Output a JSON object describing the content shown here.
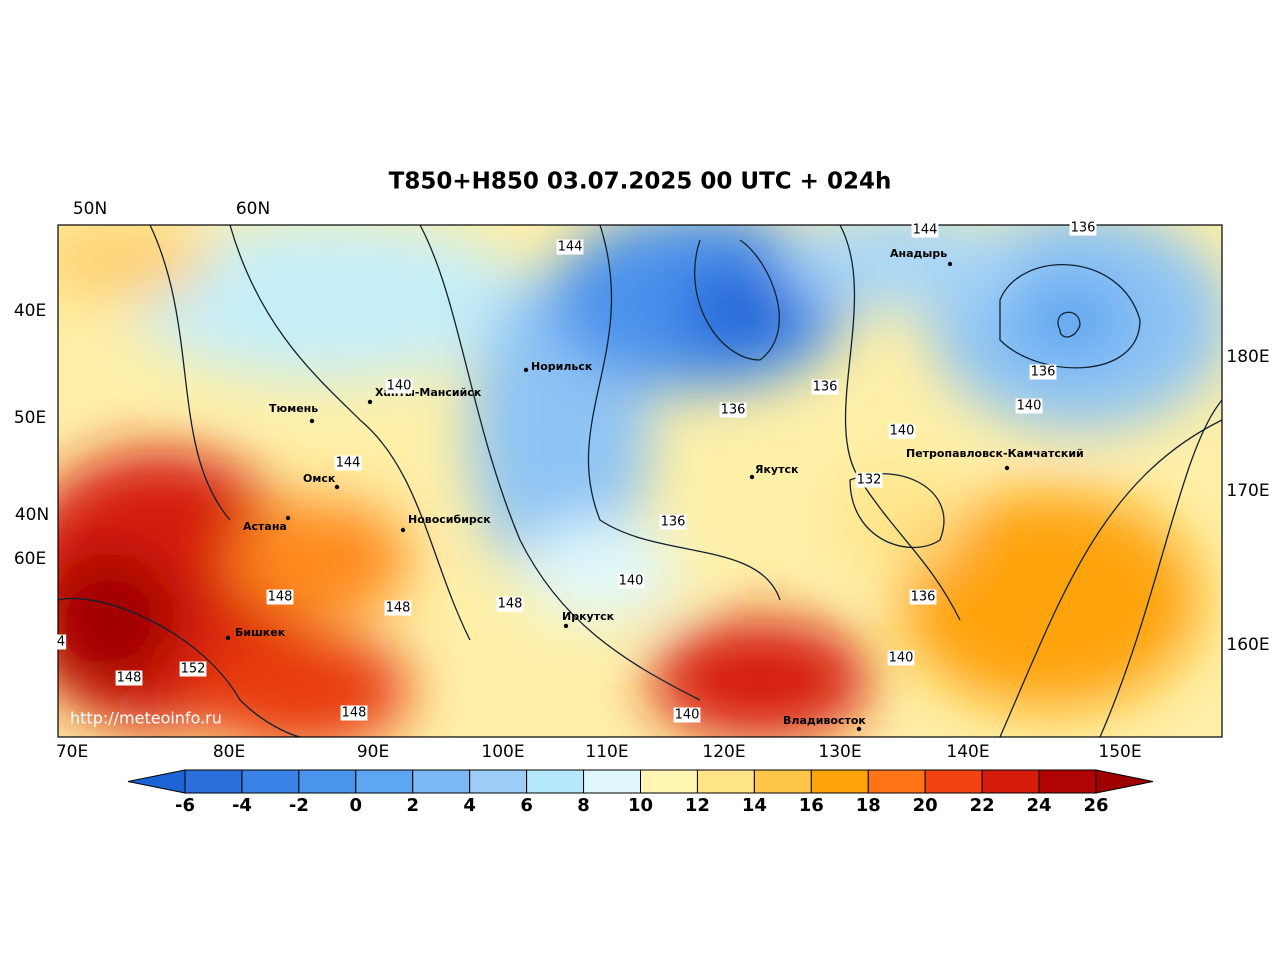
{
  "title": "T850+H850 03.07.2025 00 UTC + 024h",
  "axis_labels": {
    "top": [
      "50N",
      "60N"
    ],
    "left": [
      "40E",
      "50E",
      "40N",
      "60E"
    ],
    "right": [
      "180E",
      "170E",
      "160E"
    ],
    "bottom": [
      "70E",
      "80E",
      "90E",
      "100E",
      "110E",
      "120E",
      "130E",
      "140E",
      "150E"
    ]
  },
  "cities": [
    "Норильск",
    "Ханты-Мансийск",
    "Тюмень",
    "Омск",
    "Астана",
    "Новосибирск",
    "Бишкек",
    "Иркутск",
    "Якутск",
    "Анадырь",
    "Петропавловск-Камчатский",
    "Владивосток"
  ],
  "contour_labels": [
    144,
    144,
    136,
    140,
    136,
    136,
    136,
    140,
    140,
    144,
    132,
    136,
    140,
    148,
    148,
    148,
    136,
    140,
    152,
    148,
    148,
    140,
    4
  ],
  "watermark": "http://meteoinfo.ru",
  "colorbar": {
    "levels": [
      -6,
      -4,
      -2,
      0,
      2,
      4,
      6,
      8,
      10,
      12,
      14,
      16,
      18,
      20,
      22,
      24,
      26
    ],
    "colors": [
      "#2b6fdc",
      "#3a82e8",
      "#4b94ee",
      "#5ea6f1",
      "#7bb9f4",
      "#9bcdf7",
      "#b5e8f8",
      "#e0f8fb",
      "#fff6b4",
      "#ffe386",
      "#ffc548",
      "#ffa30a",
      "#ff7416",
      "#f44212",
      "#d61c0a",
      "#b00404"
    ],
    "under_color": "#1c64d6",
    "over_color": "#a00000"
  }
}
